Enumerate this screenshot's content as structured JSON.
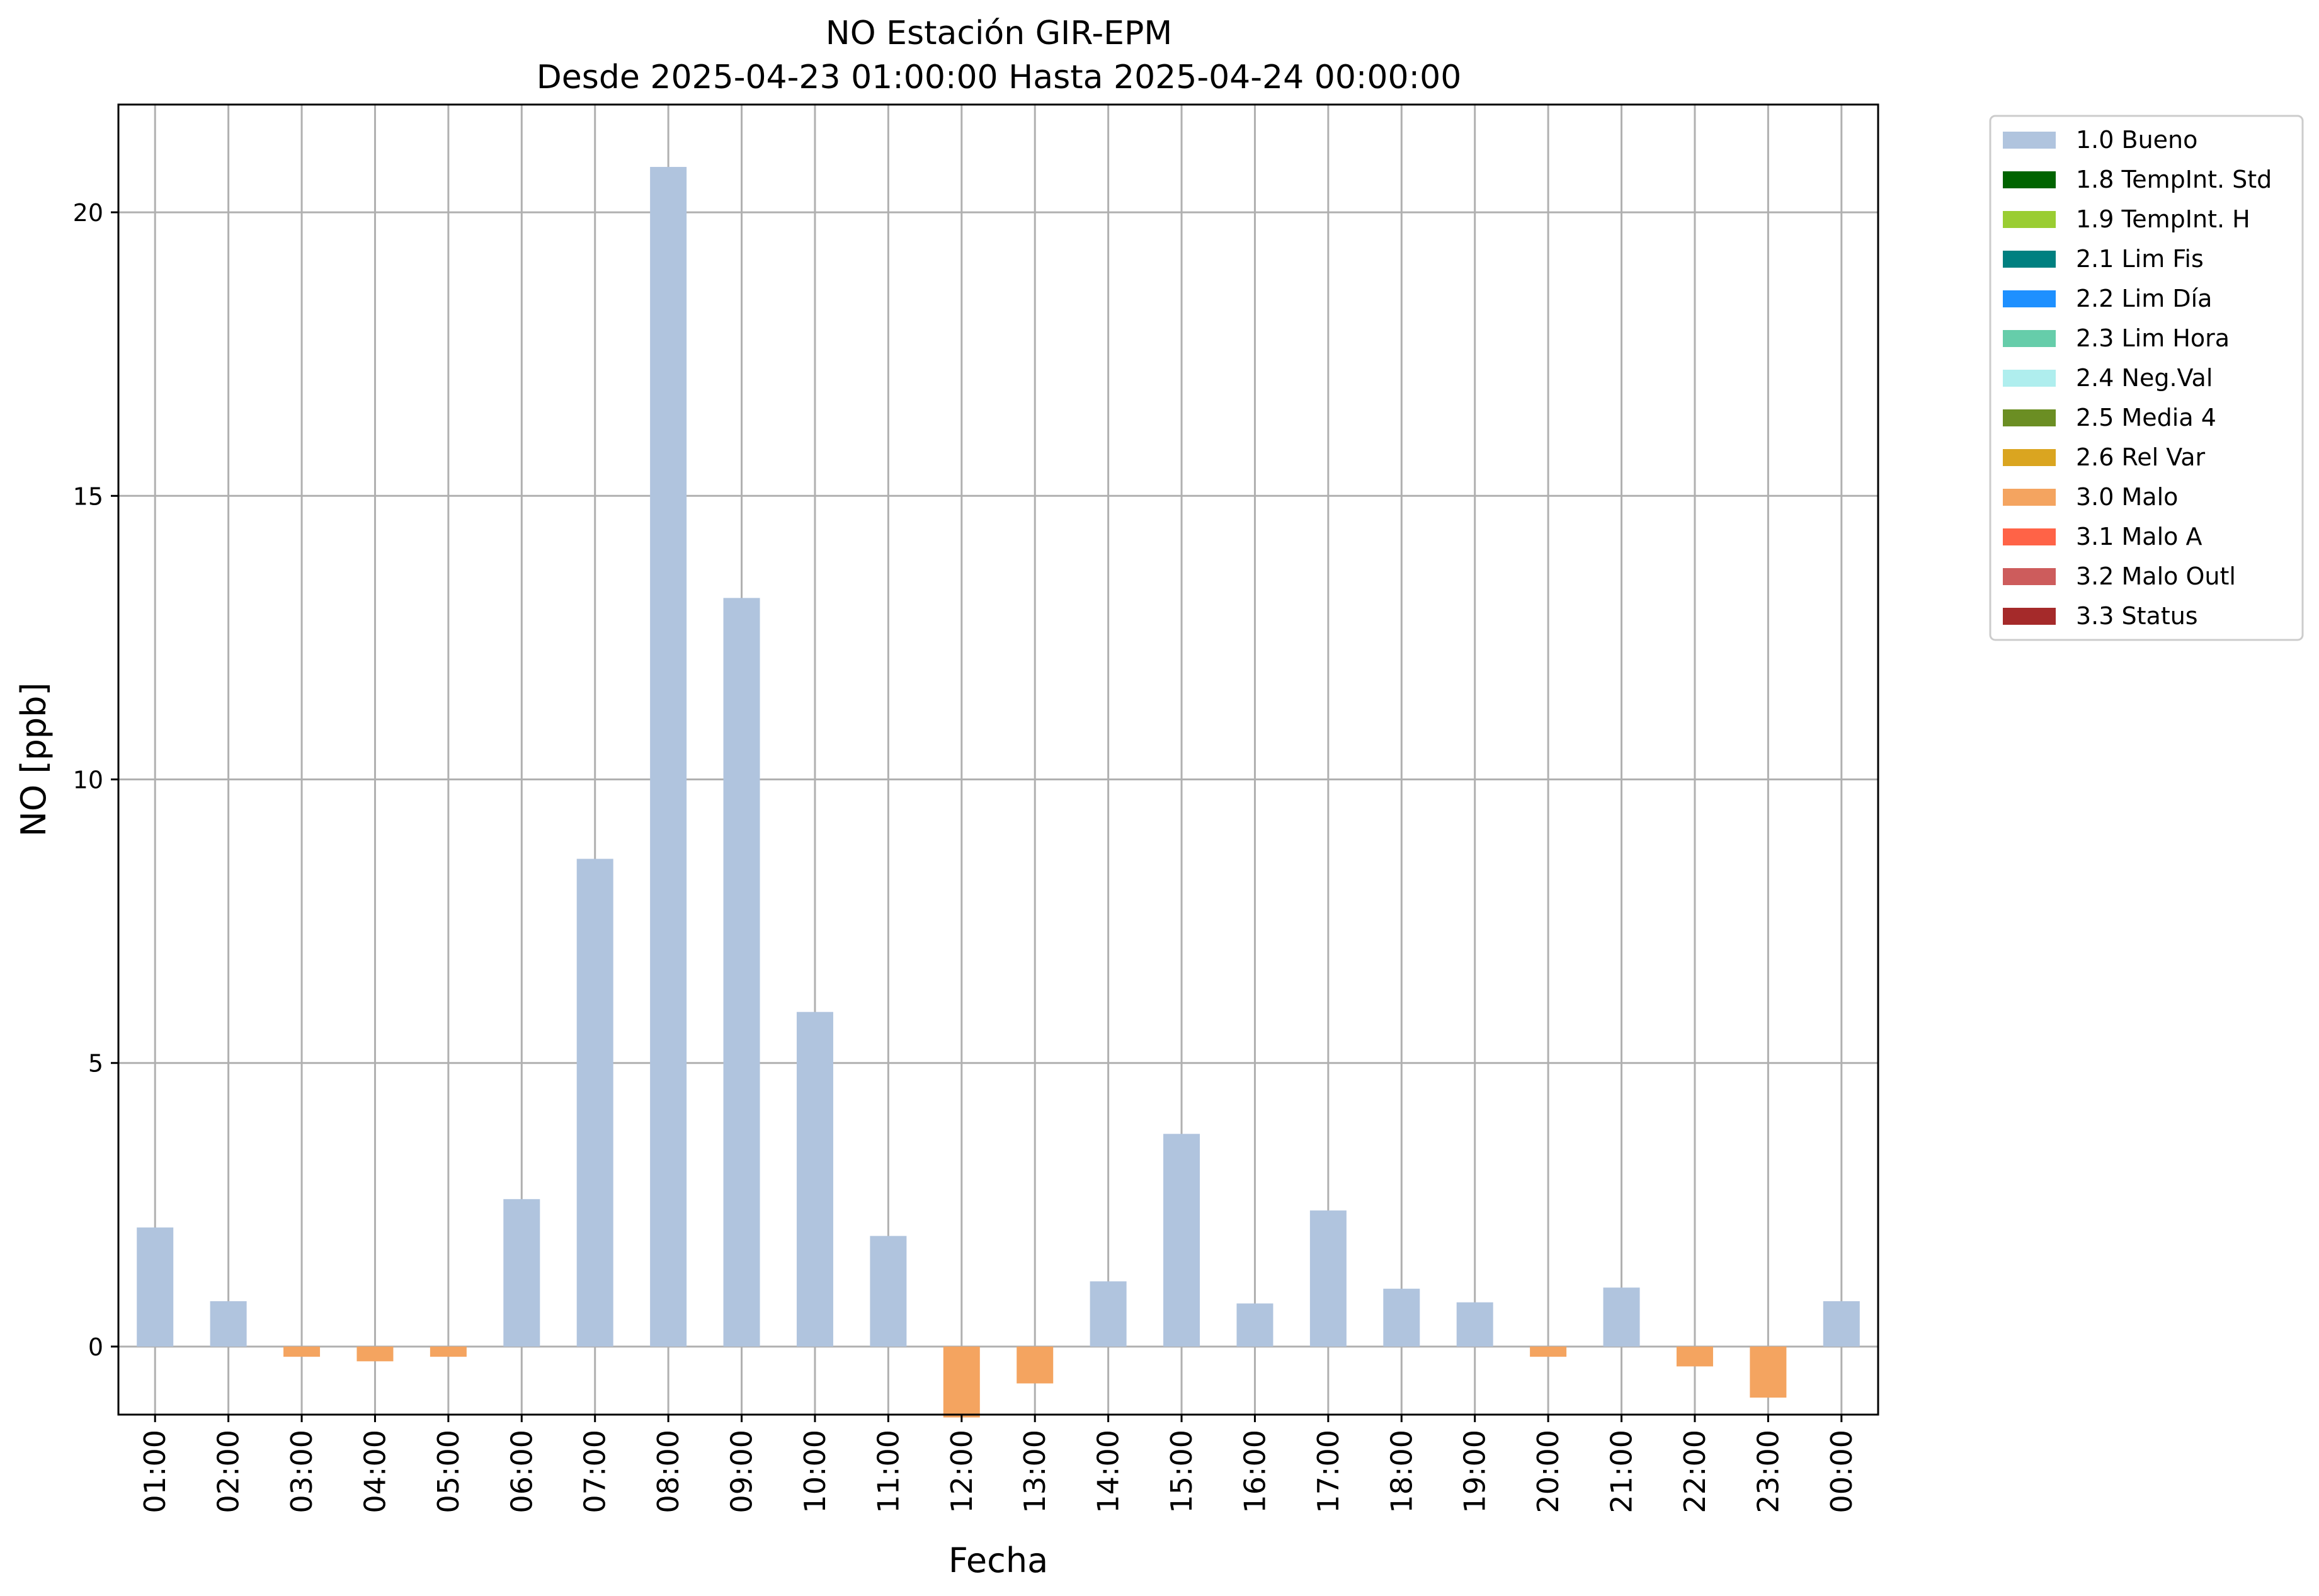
{
  "chart_data": {
    "type": "bar",
    "title": "NO Estación GIR-EPM",
    "subtitle": "Desde 2025-04-23 01:00:00 Hasta 2025-04-24 00:00:00",
    "xlabel": "Fecha",
    "ylabel": "NO [ppb]",
    "ylim": [
      -1.2,
      21.9
    ],
    "yticks": [
      0,
      5,
      10,
      15,
      20
    ],
    "ytick_labels": [
      "0",
      "5",
      "10",
      "15",
      "20"
    ],
    "grid": true,
    "legend_position": "outside-right-top",
    "categories": [
      "01:00",
      "02:00",
      "03:00",
      "04:00",
      "05:00",
      "06:00",
      "07:00",
      "08:00",
      "09:00",
      "10:00",
      "11:00",
      "12:00",
      "13:00",
      "14:00",
      "15:00",
      "16:00",
      "17:00",
      "18:00",
      "19:00",
      "20:00",
      "21:00",
      "22:00",
      "23:00",
      "00:00"
    ],
    "values": [
      2.1,
      0.8,
      -0.18,
      -0.26,
      -0.18,
      2.6,
      8.6,
      20.8,
      13.2,
      5.9,
      1.95,
      -1.25,
      -0.65,
      1.15,
      3.75,
      0.76,
      2.4,
      1.02,
      0.78,
      -0.18,
      1.04,
      -0.35,
      -0.9,
      0.8
    ],
    "flags": [
      "1.0 Bueno",
      "1.0 Bueno",
      "3.0 Malo",
      "3.0 Malo",
      "3.0 Malo",
      "1.0 Bueno",
      "1.0 Bueno",
      "1.0 Bueno",
      "1.0 Bueno",
      "1.0 Bueno",
      "1.0 Bueno",
      "3.0 Malo",
      "3.0 Malo",
      "1.0 Bueno",
      "1.0 Bueno",
      "1.0 Bueno",
      "1.0 Bueno",
      "1.0 Bueno",
      "1.0 Bueno",
      "3.0 Malo",
      "1.0 Bueno",
      "3.0 Malo",
      "3.0 Malo",
      "1.0 Bueno"
    ],
    "legend": [
      {
        "label": "1.0 Bueno",
        "color": "#b0c4de"
      },
      {
        "label": "1.8 TempInt. Std",
        "color": "#006400"
      },
      {
        "label": "1.9 TempInt. H",
        "color": "#9acd32"
      },
      {
        "label": "2.1 Lim Fis",
        "color": "#008080"
      },
      {
        "label": "2.2 Lim Día",
        "color": "#1e90ff"
      },
      {
        "label": "2.3 Lim Hora",
        "color": "#66cdaa"
      },
      {
        "label": "2.4 Neg.Val",
        "color": "#afeeee"
      },
      {
        "label": "2.5 Media 4",
        "color": "#6b8e23"
      },
      {
        "label": "2.6 Rel Var",
        "color": "#daa520"
      },
      {
        "label": "3.0 Malo",
        "color": "#f4a460"
      },
      {
        "label": "3.1 Malo A",
        "color": "#ff6347"
      },
      {
        "label": "3.2 Malo Outl",
        "color": "#cd5c5c"
      },
      {
        "label": "3.3 Status",
        "color": "#a52a2a"
      }
    ]
  }
}
